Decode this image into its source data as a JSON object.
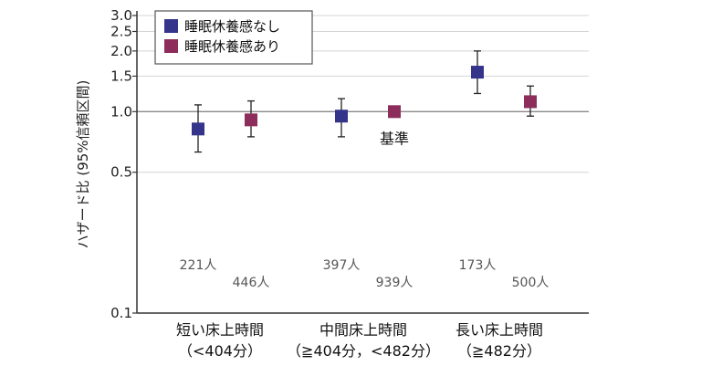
{
  "chart_data": {
    "type": "scatter",
    "ylabel": "ハザード比 (95%信頼区間)",
    "y_scale": "log",
    "ylim": [
      0.1,
      3.0
    ],
    "y_ticks": [
      {
        "value": 3.0,
        "label": "3.0"
      },
      {
        "value": 2.5,
        "label": "2.5"
      },
      {
        "value": 2.0,
        "label": "2.0"
      },
      {
        "value": 1.5,
        "label": "1.5"
      },
      {
        "value": 1.0,
        "label": "1.0"
      },
      {
        "value": 0.5,
        "label": "0.5"
      },
      {
        "value": 0.1,
        "label": "0.1"
      }
    ],
    "reference_line": 1.0,
    "grid": true,
    "legend_position": "top-left",
    "categories": [
      {
        "line1": "短い床上時間",
        "line2": "（<404分）"
      },
      {
        "line1": "中間床上時間",
        "line2": "（≧404分，<482分）"
      },
      {
        "line1": "長い床上時間",
        "line2": "（≧482分）"
      }
    ],
    "series": [
      {
        "name": "睡眠休養感なし",
        "color": "#33348a",
        "points": [
          {
            "value": 0.82,
            "low": 0.63,
            "high": 1.08,
            "count": "221人"
          },
          {
            "value": 0.95,
            "low": 0.75,
            "high": 1.16,
            "count": "397人"
          },
          {
            "value": 1.57,
            "low": 1.23,
            "high": 2.0,
            "count": "173人"
          }
        ]
      },
      {
        "name": "睡眠休養感あり",
        "color": "#8c2d5c",
        "points": [
          {
            "value": 0.91,
            "low": 0.75,
            "high": 1.13,
            "count": "446人"
          },
          {
            "value": 1.0,
            "low": null,
            "high": null,
            "count": "939人",
            "annotation": "基準"
          },
          {
            "value": 1.12,
            "low": 0.95,
            "high": 1.34,
            "count": "500人"
          }
        ]
      }
    ]
  }
}
